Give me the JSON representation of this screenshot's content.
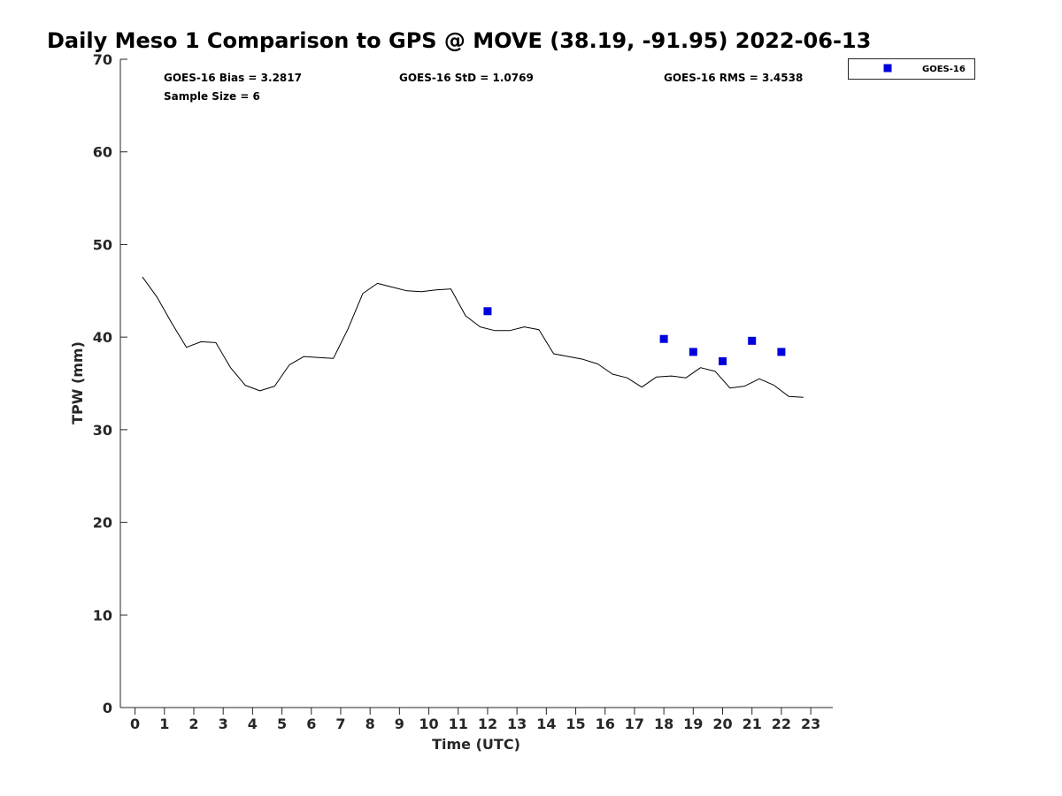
{
  "chart_data": {
    "type": "line",
    "title": "Daily Meso 1 Comparison to GPS @ MOVE (38.19, -91.95) 2022-06-13",
    "xlabel": "Time (UTC)",
    "ylabel": "TPW (mm)",
    "xlim": [
      -0.5,
      23.75
    ],
    "ylim": [
      0,
      70
    ],
    "x_ticks": [
      0,
      1,
      2,
      3,
      4,
      5,
      6,
      7,
      8,
      9,
      10,
      11,
      12,
      13,
      14,
      15,
      16,
      17,
      18,
      19,
      20,
      21,
      22,
      23
    ],
    "y_ticks": [
      0,
      10,
      20,
      30,
      40,
      50,
      60,
      70
    ],
    "grid": false,
    "legend_position": "outside-top-right",
    "series": [
      {
        "kind": "line",
        "color": "#000000",
        "x": [
          0.25,
          0.75,
          1.25,
          1.75,
          2.25,
          2.75,
          3.25,
          3.75,
          4.25,
          4.75,
          5.25,
          5.75,
          6.25,
          6.75,
          7.25,
          7.75,
          8.25,
          8.75,
          9.25,
          9.75,
          10.25,
          10.75,
          11.25,
          11.75,
          12.25,
          12.75,
          13.25,
          13.75,
          14.25,
          14.75,
          15.25,
          15.75,
          16.25,
          16.75,
          17.25,
          17.75,
          18.25,
          18.75,
          19.25,
          19.75,
          20.25,
          20.75,
          21.25,
          21.75,
          22.25,
          22.75
        ],
        "y": [
          46.5,
          44.3,
          41.5,
          38.9,
          39.5,
          39.4,
          36.7,
          34.8,
          34.2,
          34.7,
          37.0,
          37.9,
          37.8,
          37.7,
          40.9,
          44.7,
          45.8,
          45.4,
          45.0,
          44.9,
          45.1,
          45.2,
          42.3,
          41.1,
          40.7,
          40.7,
          41.1,
          40.8,
          38.2,
          37.9,
          37.6,
          37.1,
          36.0,
          35.6,
          34.6,
          35.7,
          35.8,
          35.6,
          36.7,
          36.3,
          34.5,
          34.7,
          35.5,
          34.8,
          33.6,
          33.5
        ]
      },
      {
        "name": "GOES-16",
        "kind": "scatter",
        "marker": "square",
        "color": "#0000dd",
        "x": [
          12,
          18,
          19,
          20,
          21,
          22
        ],
        "y": [
          42.8,
          39.8,
          38.4,
          37.4,
          39.6,
          38.4
        ]
      }
    ],
    "annotations": {
      "bias": "GOES-16 Bias = 3.2817",
      "std": "GOES-16 StD = 1.0769",
      "rms": "GOES-16 RMS = 3.4538",
      "sample_size": "Sample Size = 6"
    }
  }
}
